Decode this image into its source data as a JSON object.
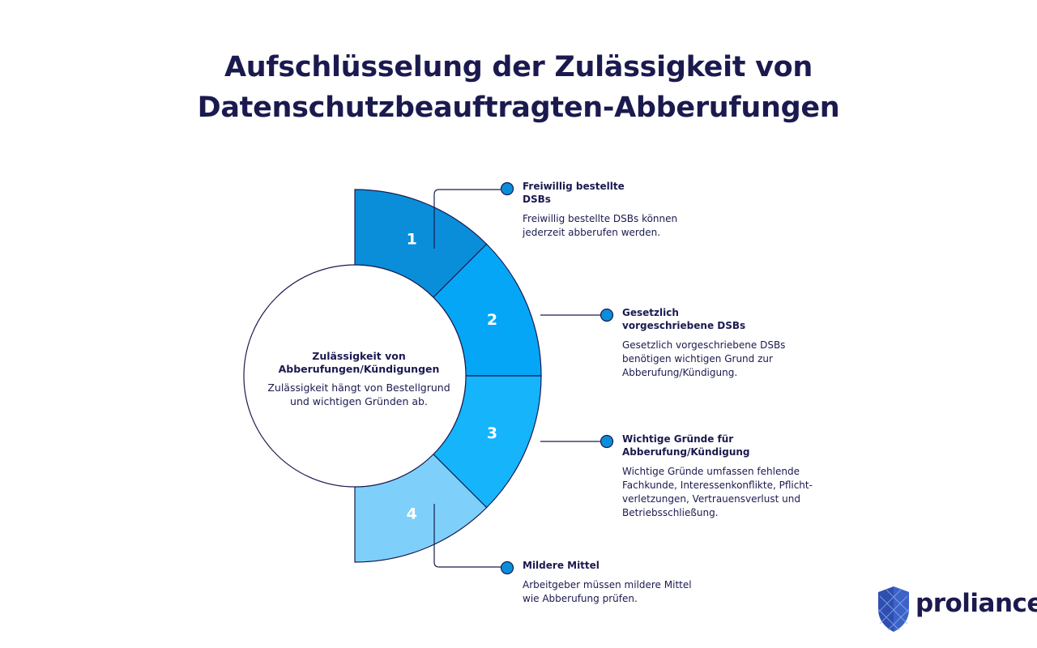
{
  "title": {
    "line1": "Aufschlüsselung der Zulässigkeit von",
    "line2": "Datenschutzbeauftragten-Abberufungen"
  },
  "center": {
    "title_line1": "Zulässigkeit von",
    "title_line2": "Abberufungen/Kündigungen",
    "desc_line1": "Zulässigkeit hängt von Bestellgrund",
    "desc_line2": "und wichtigen Gründen ab."
  },
  "segments": [
    {
      "number": "1",
      "color": "#0a8ed9",
      "title_lines": [
        "Freiwillig bestellte",
        "DSBs"
      ],
      "desc_lines": [
        "Freiwillig bestellte DSBs können",
        "jederzeit abberufen werden."
      ]
    },
    {
      "number": "2",
      "color": "#05a6f6",
      "title_lines": [
        "Gesetzlich",
        "vorgeschriebene DSBs"
      ],
      "desc_lines": [
        "Gesetzlich vorgeschriebene DSBs",
        "benötigen wichtigen Grund zur",
        "Abberufung/Kündigung."
      ]
    },
    {
      "number": "3",
      "color": "#15b4fb",
      "title_lines": [
        "Wichtige Gründe für",
        "Abberufung/Kündigung"
      ],
      "desc_lines": [
        "Wichtige Gründe umfassen fehlende",
        "Fachkunde, Interessenkonflikte, Pflicht-",
        "verletzungen, Vertrauensverlust und",
        "Betriebsschließung."
      ]
    },
    {
      "number": "4",
      "color": "#7ed0fb",
      "title_lines": [
        "Mildere Mittel"
      ],
      "desc_lines": [
        "Arbeitgeber müssen mildere Mittel",
        "wie Abberufung prüfen."
      ]
    }
  ],
  "colors": {
    "text": "#1b1a4f",
    "dot": "#0a8ed9"
  },
  "logo": {
    "icon": "shield-icon",
    "text": "proliance"
  }
}
